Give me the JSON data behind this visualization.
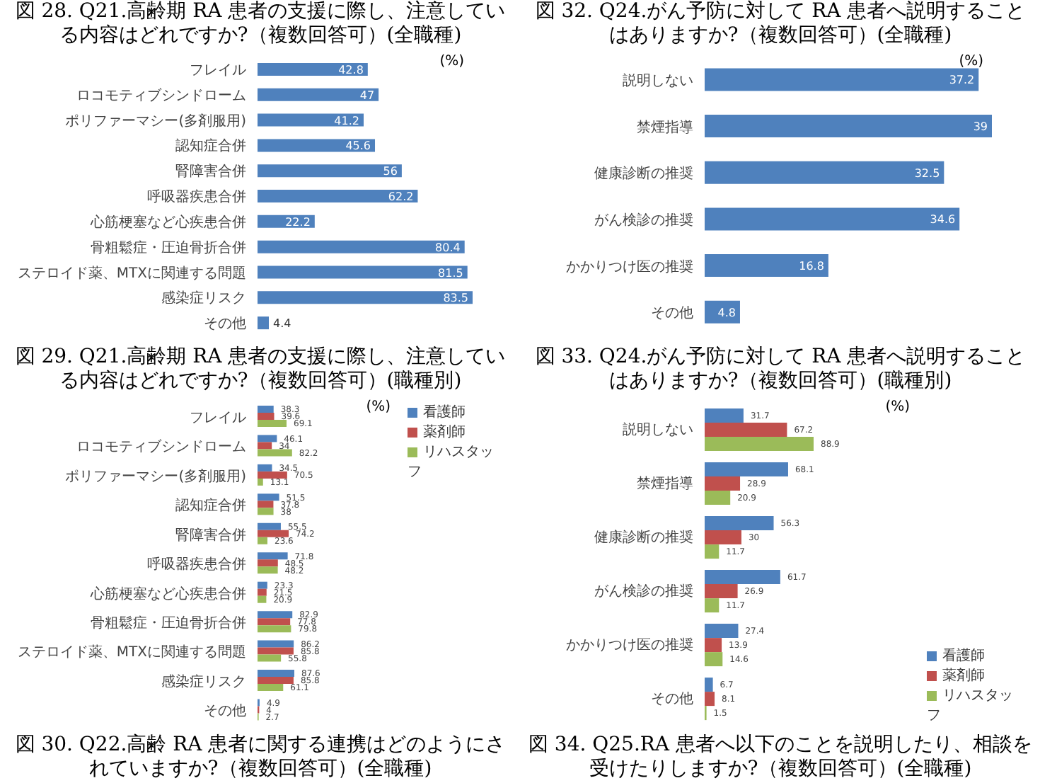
{
  "chart_data": [
    {
      "type": "bar",
      "orientation": "horizontal",
      "title": "図 28. Q21.高齢期 RA 患者の支援に際し、注意している内容はどれですか?（複数回答可）(全職種)",
      "categories": [
        "フレイル",
        "ロコモティブシンドローム",
        "ポリファーマシー(多剤服用)",
        "認知症合併",
        "腎障害合併",
        "呼吸器疾患合併",
        "心筋梗塞など心疾患合併",
        "骨粗鬆症・圧迫骨折合併",
        "ステロイド薬、MTXに関連する問題",
        "感染症リスク",
        "その他"
      ],
      "values": [
        42.8,
        47.0,
        41.2,
        45.6,
        56.0,
        62.2,
        22.2,
        80.4,
        81.5,
        83.5,
        4.4
      ],
      "color": "#4f81bd",
      "data_labels": true,
      "tick_labels": "y",
      "annotations": [
        "(%)"
      ]
    },
    {
      "type": "bar",
      "orientation": "horizontal",
      "title": "図 32. Q24.がん予防に対して RA 患者へ説明することはありますか?（複数回答可）(全職種)",
      "categories": [
        "説明しない",
        "禁煙指導",
        "健康診断の推奨",
        "がん検診の推奨",
        "かかりつけ医の推奨",
        "その他"
      ],
      "values": [
        37.2,
        39.0,
        32.5,
        34.6,
        16.8,
        4.8
      ],
      "color": "#4f81bd",
      "data_labels": true,
      "tick_labels": "y",
      "annotations": [
        "(%)"
      ]
    },
    {
      "type": "bar",
      "orientation": "horizontal",
      "title": "図 29. Q21.高齢期 RA 患者の支援に際し、注意している内容はどれですか?（複数回答可）(職種別)",
      "categories": [
        "フレイル",
        "ロコモティブシンドローム",
        "ポリファーマシー(多剤服用)",
        "認知症合併",
        "腎障害合併",
        "呼吸器疾患合併",
        "心筋梗塞など心疾患合併",
        "骨粗鬆症・圧迫骨折合併",
        "ステロイド薬、MTXに関連する問題",
        "感染症リスク",
        "その他"
      ],
      "series": [
        {
          "name": "看護師",
          "color": "#4f81bd",
          "values": [
            38.3,
            46.1,
            34.5,
            51.5,
            55.5,
            71.8,
            23.3,
            82.9,
            86.2,
            87.6,
            4.9
          ]
        },
        {
          "name": "薬剤師",
          "color": "#c0504d",
          "values": [
            39.6,
            34.0,
            70.5,
            37.8,
            74.2,
            48.5,
            21.5,
            77.8,
            85.8,
            85.8,
            4.0
          ]
        },
        {
          "name": "リハスタッフ",
          "color": "#9bbb59",
          "values": [
            69.1,
            82.2,
            13.1,
            38.0,
            23.6,
            48.2,
            20.9,
            79.8,
            55.8,
            61.1,
            2.7
          ]
        }
      ],
      "data_labels": true,
      "legend": "top right",
      "tick_labels": "y",
      "annotations": [
        "(%)",
        "図 30. Q22.高齢 RA 患者に関する連携はどのようにされていますか?（複数回答可）(全職種)"
      ]
    },
    {
      "type": "bar",
      "orientation": "horizontal",
      "title": "図 33. Q24.がん予防に対して RA 患者へ説明することはありますか?（複数回答可）(職種別)",
      "categories": [
        "説明しない",
        "禁煙指導",
        "健康診断の推奨",
        "がん検診の推奨",
        "かかりつけ医の推奨",
        "その他"
      ],
      "series": [
        {
          "name": "看護師",
          "color": "#4f81bd",
          "values": [
            31.7,
            68.1,
            56.3,
            61.7,
            27.4,
            6.7
          ]
        },
        {
          "name": "薬剤師",
          "color": "#c0504d",
          "values": [
            67.2,
            28.9,
            30.0,
            26.9,
            13.9,
            8.1
          ]
        },
        {
          "name": "リハスタッフ",
          "color": "#9bbb59",
          "values": [
            88.9,
            20.9,
            11.7,
            11.7,
            14.6,
            1.5
          ]
        }
      ],
      "data_labels": true,
      "legend": "bottom right",
      "tick_labels": "y",
      "annotations": [
        "(%)",
        "図 34. Q25.RA 患者へ以下のことを説明したり、相談を受けたりしますか?（複数回答可）(全職種)"
      ]
    }
  ]
}
